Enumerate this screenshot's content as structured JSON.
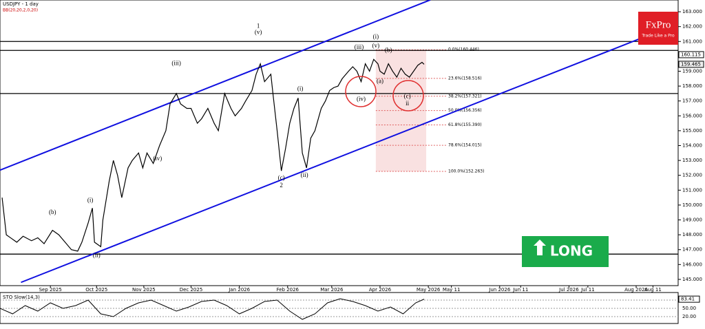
{
  "chart_data": {
    "type": "line",
    "title": "USDJPY - 1 day",
    "subtitle": "BB(20,20,2,0,20)",
    "x": [
      1,
      3,
      5,
      8,
      11,
      15,
      18,
      21,
      25,
      28,
      31,
      34,
      37,
      39,
      42,
      44,
      45,
      48,
      49,
      52,
      54,
      56,
      58,
      61,
      63,
      66,
      68,
      70,
      73,
      76,
      79,
      81,
      84,
      86,
      89,
      91,
      94,
      96,
      99,
      102,
      104,
      107,
      110,
      112,
      115,
      117,
      120,
      122,
      124,
      126,
      129,
      130,
      132,
      134,
      136,
      138,
      140,
      142,
      144,
      146,
      148,
      150,
      151,
      153,
      155,
      157,
      159,
      161,
      163,
      166,
      168,
      170,
      172,
      174,
      176,
      178,
      180,
      181,
      183,
      185,
      187,
      189,
      191,
      193,
      195,
      197,
      199,
      201,
      202
    ],
    "series": [
      {
        "color": "#000000",
        "values": [
          150.5,
          148.0,
          147.8,
          147.5,
          147.9,
          147.6,
          147.8,
          147.4,
          148.3,
          148.0,
          147.5,
          147.0,
          146.9,
          147.5,
          148.8,
          149.8,
          147.5,
          147.2,
          149.0,
          151.6,
          153.0,
          152.0,
          150.5,
          152.5,
          153.0,
          153.5,
          152.5,
          153.5,
          152.8,
          154.0,
          155.0,
          156.8,
          157.5,
          156.8,
          156.5,
          156.5,
          155.5,
          155.8,
          156.5,
          155.5,
          155.0,
          157.5,
          156.5,
          156.0,
          156.5,
          157.0,
          157.7,
          158.8,
          159.5,
          158.3,
          158.8,
          157.5,
          155.0,
          152.3,
          153.8,
          155.5,
          156.5,
          157.2,
          153.5,
          152.5,
          154.5,
          155.0,
          155.5,
          156.5,
          157.0,
          157.7,
          157.9,
          158.0,
          158.5,
          159.0,
          159.3,
          159.0,
          158.3,
          159.5,
          159.0,
          159.8,
          159.5,
          159.0,
          158.8,
          159.5,
          159.0,
          158.6,
          159.2,
          158.8,
          158.6,
          159.0,
          159.4,
          159.6,
          159.465
        ]
      }
    ],
    "xlim": [
      0,
      323
    ],
    "ylim": [
      144.58,
      163.79
    ],
    "yticks": [
      {
        "value": 145,
        "label": "145.000"
      },
      {
        "value": 146,
        "label": "146.000"
      },
      {
        "value": 147,
        "label": "147.000"
      },
      {
        "value": 148,
        "label": "148.000"
      },
      {
        "value": 149,
        "label": "149.000"
      },
      {
        "value": 150,
        "label": "150.000"
      },
      {
        "value": 151,
        "label": "151.000"
      },
      {
        "value": 152,
        "label": "152.000"
      },
      {
        "value": 153,
        "label": "153.000"
      },
      {
        "value": 154,
        "label": "154.000"
      },
      {
        "value": 155,
        "label": "155.000"
      },
      {
        "value": 156,
        "label": "156.000"
      },
      {
        "value": 157,
        "label": "157.000"
      },
      {
        "value": 158,
        "label": "158.000"
      },
      {
        "value": 159,
        "label": "159.000"
      },
      {
        "value": 160,
        "label": "160.000"
      },
      {
        "value": 161,
        "label": "161.000"
      },
      {
        "value": 162,
        "label": "162.000"
      },
      {
        "value": 163,
        "label": "163.000"
      }
    ],
    "xticks": [
      {
        "value": 24,
        "label": "Sep 2025"
      },
      {
        "value": 46,
        "label": "Oct 2025"
      },
      {
        "value": 68.5,
        "label": "Nov 2025"
      },
      {
        "value": 91,
        "label": "Dec 2025"
      },
      {
        "value": 114,
        "label": "Jan 2026"
      },
      {
        "value": 137,
        "label": "Feb 2026"
      },
      {
        "value": 158,
        "label": "Mar 2026"
      },
      {
        "value": 181,
        "label": "Apr 2026"
      },
      {
        "value": 204,
        "label": "May 2026"
      },
      {
        "value": 215,
        "label": "May 11"
      },
      {
        "value": 238,
        "label": "Jun 2026"
      },
      {
        "value": 248,
        "label": "Jun 11"
      },
      {
        "value": 271,
        "label": "Jul 2026"
      },
      {
        "value": 280,
        "label": "Jul 11"
      },
      {
        "value": 303,
        "label": "Aug 2026"
      },
      {
        "value": 311,
        "label": "Aug 11"
      }
    ],
    "price_labels": [
      {
        "value": 160.115,
        "label": "160.115"
      },
      {
        "value": 159.465,
        "label": "159.465"
      }
    ],
    "levels": [
      161.0,
      160.4,
      157.5,
      146.7
    ],
    "channels": [
      {
        "color": "#1010e0",
        "x": [
          0,
          205
        ],
        "y": [
          152.35,
          163.8
        ]
      },
      {
        "color": "#1010e0",
        "x": [
          10,
          305
        ],
        "y": [
          144.8,
          161.2
        ]
      }
    ],
    "fib": {
      "x": [
        179,
        203
      ],
      "levels": [
        {
          "value": 160.446,
          "label": "0.0%(160.446)"
        },
        {
          "value": 158.516,
          "label": "23.6%(158.516)"
        },
        {
          "value": 157.321,
          "label": "38.2%(157.321)"
        },
        {
          "value": 156.356,
          "label": "50.0%(156.356)"
        },
        {
          "value": 155.39,
          "label": "61.8%(155.390)"
        },
        {
          "value": 154.015,
          "label": "78.6%(154.015)"
        },
        {
          "value": 152.263,
          "label": "100.0%(152.263)"
        }
      ]
    },
    "annotations": [
      {
        "text": "1",
        "x": 123,
        "y": 162.0
      },
      {
        "text": "2",
        "x": 134,
        "y": 151.3
      },
      {
        "text": "(v)",
        "x": 123,
        "y": 161.6
      },
      {
        "text": "(c)",
        "x": 134,
        "y": 151.8
      },
      {
        "text": "(iii)",
        "x": 84,
        "y": 159.5
      },
      {
        "text": "(iv)",
        "x": 75,
        "y": 153.1
      },
      {
        "text": "(i)",
        "x": 143,
        "y": 157.8
      },
      {
        "text": "(ii)",
        "x": 145,
        "y": 152.0
      },
      {
        "text": "(iii)",
        "x": 171,
        "y": 160.6
      },
      {
        "text": "(iv)",
        "x": 172,
        "y": 157.1
      },
      {
        "text": "(v)",
        "x": 179,
        "y": 160.7
      },
      {
        "text": "(i)",
        "x": 179,
        "y": 161.3
      },
      {
        "text": "(a)",
        "x": 181,
        "y": 158.3
      },
      {
        "text": "(b)",
        "x": 185,
        "y": 160.4
      },
      {
        "text": "(c)",
        "x": 194,
        "y": 157.3
      },
      {
        "text": "ii",
        "x": 194,
        "y": 156.8
      },
      {
        "text": "(ii)",
        "x": 46,
        "y": 146.6
      },
      {
        "text": "(b)",
        "x": 25,
        "y": 149.5
      },
      {
        "text": "(i)",
        "x": 43,
        "y": 150.3
      }
    ],
    "sto": {
      "title": "STO Slow(14,3)",
      "ylim": [
        0,
        100
      ],
      "yticks": [
        {
          "value": 80,
          "label": "80.00"
        },
        {
          "value": 50,
          "label": "50.00"
        },
        {
          "value": 20,
          "label": "20.00"
        }
      ],
      "current": {
        "value": 83.41,
        "label": "83.41"
      },
      "x": [
        0,
        6,
        12,
        18,
        24,
        30,
        36,
        42,
        48,
        54,
        60,
        66,
        72,
        78,
        84,
        90,
        96,
        102,
        108,
        114,
        120,
        126,
        132,
        138,
        144,
        150,
        156,
        162,
        168,
        174,
        180,
        186,
        192,
        198,
        202
      ],
      "values": [
        50,
        30,
        60,
        40,
        70,
        50,
        60,
        80,
        30,
        20,
        50,
        70,
        80,
        60,
        40,
        55,
        75,
        80,
        60,
        30,
        50,
        75,
        80,
        40,
        10,
        30,
        70,
        85,
        75,
        60,
        40,
        55,
        30,
        70,
        83.41
      ]
    }
  },
  "logo": {
    "brand": "FxPro",
    "tagline": "Trade Like a Pro"
  },
  "signal": "LONG"
}
